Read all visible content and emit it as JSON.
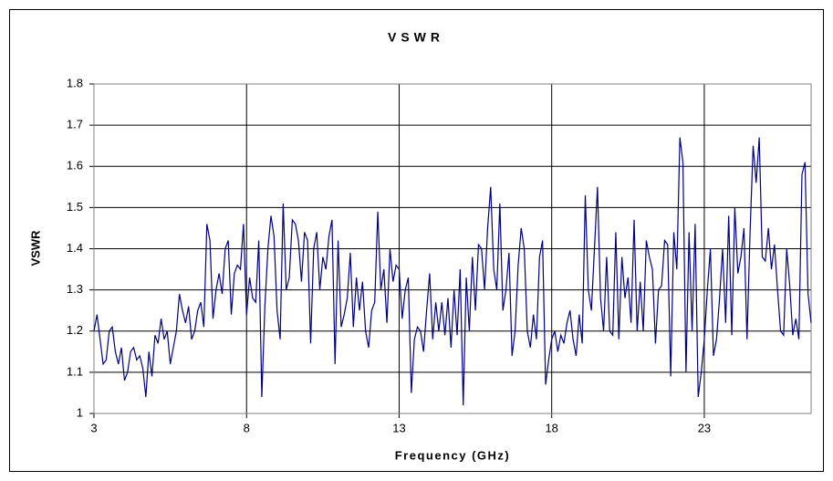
{
  "chart_data": {
    "type": "line",
    "title": "VSWR",
    "xlabel": "Frequency (GHz)",
    "ylabel": "VSWR",
    "color": "#000080",
    "grid": true,
    "xlim": [
      3,
      26.5
    ],
    "xticks": [
      3,
      8,
      13,
      18,
      23
    ],
    "ylim": [
      1,
      1.8
    ],
    "yticks": [
      1,
      1.1,
      1.2,
      1.3,
      1.4,
      1.5,
      1.6,
      1.7,
      1.8
    ],
    "x": [
      3,
      3.1,
      3.2,
      3.3,
      3.4,
      3.5,
      3.6,
      3.7,
      3.8,
      3.9,
      4,
      4.1,
      4.2,
      4.3,
      4.4,
      4.5,
      4.6,
      4.7,
      4.8,
      4.9,
      5,
      5.1,
      5.2,
      5.3,
      5.4,
      5.5,
      5.6,
      5.7,
      5.8,
      5.9,
      6,
      6.1,
      6.2,
      6.3,
      6.4,
      6.5,
      6.6,
      6.7,
      6.8,
      6.9,
      7,
      7.1,
      7.2,
      7.3,
      7.4,
      7.5,
      7.6,
      7.7,
      7.8,
      7.9,
      8,
      8.1,
      8.2,
      8.3,
      8.4,
      8.5,
      8.6,
      8.7,
      8.8,
      8.9,
      9,
      9.1,
      9.2,
      9.3,
      9.4,
      9.5,
      9.6,
      9.7,
      9.8,
      9.9,
      10,
      10.1,
      10.2,
      10.3,
      10.4,
      10.5,
      10.6,
      10.7,
      10.8,
      10.9,
      11,
      11.1,
      11.2,
      11.3,
      11.4,
      11.5,
      11.6,
      11.7,
      11.8,
      11.9,
      12,
      12.1,
      12.2,
      12.3,
      12.4,
      12.5,
      12.6,
      12.7,
      12.8,
      12.9,
      13,
      13.1,
      13.2,
      13.3,
      13.4,
      13.5,
      13.6,
      13.7,
      13.8,
      13.9,
      14,
      14.1,
      14.2,
      14.3,
      14.4,
      14.5,
      14.6,
      14.7,
      14.8,
      14.9,
      15,
      15.1,
      15.2,
      15.3,
      15.4,
      15.5,
      15.6,
      15.7,
      15.8,
      15.9,
      16,
      16.1,
      16.2,
      16.3,
      16.4,
      16.5,
      16.6,
      16.7,
      16.8,
      16.9,
      17,
      17.1,
      17.2,
      17.3,
      17.4,
      17.5,
      17.6,
      17.7,
      17.8,
      17.9,
      18,
      18.1,
      18.2,
      18.3,
      18.4,
      18.5,
      18.6,
      18.7,
      18.8,
      18.9,
      19,
      19.1,
      19.2,
      19.3,
      19.4,
      19.5,
      19.6,
      19.7,
      19.8,
      19.9,
      20,
      20.1,
      20.2,
      20.3,
      20.4,
      20.5,
      20.6,
      20.7,
      20.8,
      20.9,
      21,
      21.1,
      21.2,
      21.3,
      21.4,
      21.5,
      21.6,
      21.7,
      21.8,
      21.9,
      22,
      22.1,
      22.2,
      22.3,
      22.4,
      22.5,
      22.6,
      22.7,
      22.8,
      22.9,
      23,
      23.1,
      23.2,
      23.3,
      23.4,
      23.5,
      23.6,
      23.7,
      23.8,
      23.9,
      24,
      24.1,
      24.2,
      24.3,
      24.4,
      24.5,
      24.6,
      24.7,
      24.8,
      24.9,
      25,
      25.1,
      25.2,
      25.3,
      25.4,
      25.5,
      25.6,
      25.7,
      25.8,
      25.9,
      26,
      26.1,
      26.2,
      26.3,
      26.4,
      26.5
    ],
    "values": [
      1.2,
      1.24,
      1.18,
      1.12,
      1.13,
      1.2,
      1.21,
      1.15,
      1.12,
      1.16,
      1.08,
      1.1,
      1.15,
      1.16,
      1.13,
      1.14,
      1.11,
      1.04,
      1.15,
      1.09,
      1.19,
      1.17,
      1.23,
      1.18,
      1.2,
      1.12,
      1.16,
      1.2,
      1.29,
      1.25,
      1.22,
      1.26,
      1.18,
      1.2,
      1.25,
      1.27,
      1.21,
      1.46,
      1.42,
      1.23,
      1.3,
      1.34,
      1.29,
      1.4,
      1.42,
      1.24,
      1.34,
      1.36,
      1.35,
      1.46,
      1.24,
      1.33,
      1.28,
      1.27,
      1.42,
      1.04,
      1.26,
      1.4,
      1.48,
      1.43,
      1.25,
      1.18,
      1.51,
      1.3,
      1.33,
      1.47,
      1.46,
      1.42,
      1.32,
      1.44,
      1.42,
      1.17,
      1.4,
      1.44,
      1.3,
      1.38,
      1.35,
      1.43,
      1.47,
      1.12,
      1.42,
      1.21,
      1.24,
      1.28,
      1.39,
      1.21,
      1.33,
      1.25,
      1.32,
      1.2,
      1.16,
      1.25,
      1.27,
      1.49,
      1.3,
      1.35,
      1.22,
      1.4,
      1.32,
      1.36,
      1.35,
      1.23,
      1.3,
      1.33,
      1.05,
      1.18,
      1.21,
      1.2,
      1.15,
      1.25,
      1.34,
      1.18,
      1.27,
      1.2,
      1.27,
      1.19,
      1.28,
      1.16,
      1.3,
      1.19,
      1.35,
      1.02,
      1.33,
      1.2,
      1.38,
      1.25,
      1.41,
      1.4,
      1.3,
      1.45,
      1.55,
      1.35,
      1.3,
      1.51,
      1.25,
      1.3,
      1.39,
      1.14,
      1.2,
      1.36,
      1.45,
      1.4,
      1.2,
      1.16,
      1.24,
      1.18,
      1.38,
      1.42,
      1.07,
      1.13,
      1.18,
      1.2,
      1.15,
      1.19,
      1.17,
      1.22,
      1.25,
      1.18,
      1.14,
      1.24,
      1.17,
      1.53,
      1.3,
      1.25,
      1.4,
      1.55,
      1.28,
      1.2,
      1.38,
      1.2,
      1.19,
      1.44,
      1.18,
      1.38,
      1.28,
      1.33,
      1.22,
      1.47,
      1.2,
      1.32,
      1.2,
      1.42,
      1.38,
      1.35,
      1.17,
      1.3,
      1.31,
      1.42,
      1.41,
      1.09,
      1.44,
      1.35,
      1.67,
      1.61,
      1.1,
      1.44,
      1.2,
      1.46,
      1.04,
      1.1,
      1.18,
      1.3,
      1.4,
      1.14,
      1.18,
      1.28,
      1.4,
      1.22,
      1.48,
      1.19,
      1.5,
      1.34,
      1.38,
      1.45,
      1.18,
      1.44,
      1.65,
      1.56,
      1.67,
      1.38,
      1.37,
      1.45,
      1.35,
      1.41,
      1.3,
      1.2,
      1.19,
      1.4,
      1.31,
      1.19,
      1.23,
      1.18,
      1.58,
      1.61,
      1.29,
      1.22
    ]
  }
}
